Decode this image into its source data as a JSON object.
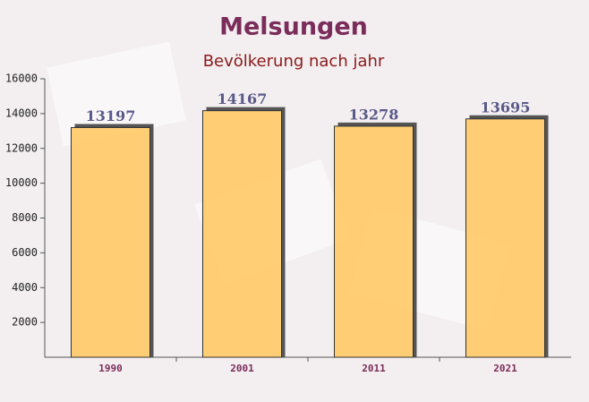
{
  "chart_data": {
    "type": "bar",
    "title": "Melsungen",
    "subtitle": "Bevölkerung nach jahr",
    "categories": [
      "1990",
      "2001",
      "2011",
      "2021"
    ],
    "values": [
      13197,
      14167,
      13278,
      13695
    ],
    "color": "#ffc966",
    "ylim": [
      0,
      16000
    ],
    "yticks": [
      2000,
      4000,
      6000,
      8000,
      10000,
      12000,
      14000,
      16000
    ]
  }
}
